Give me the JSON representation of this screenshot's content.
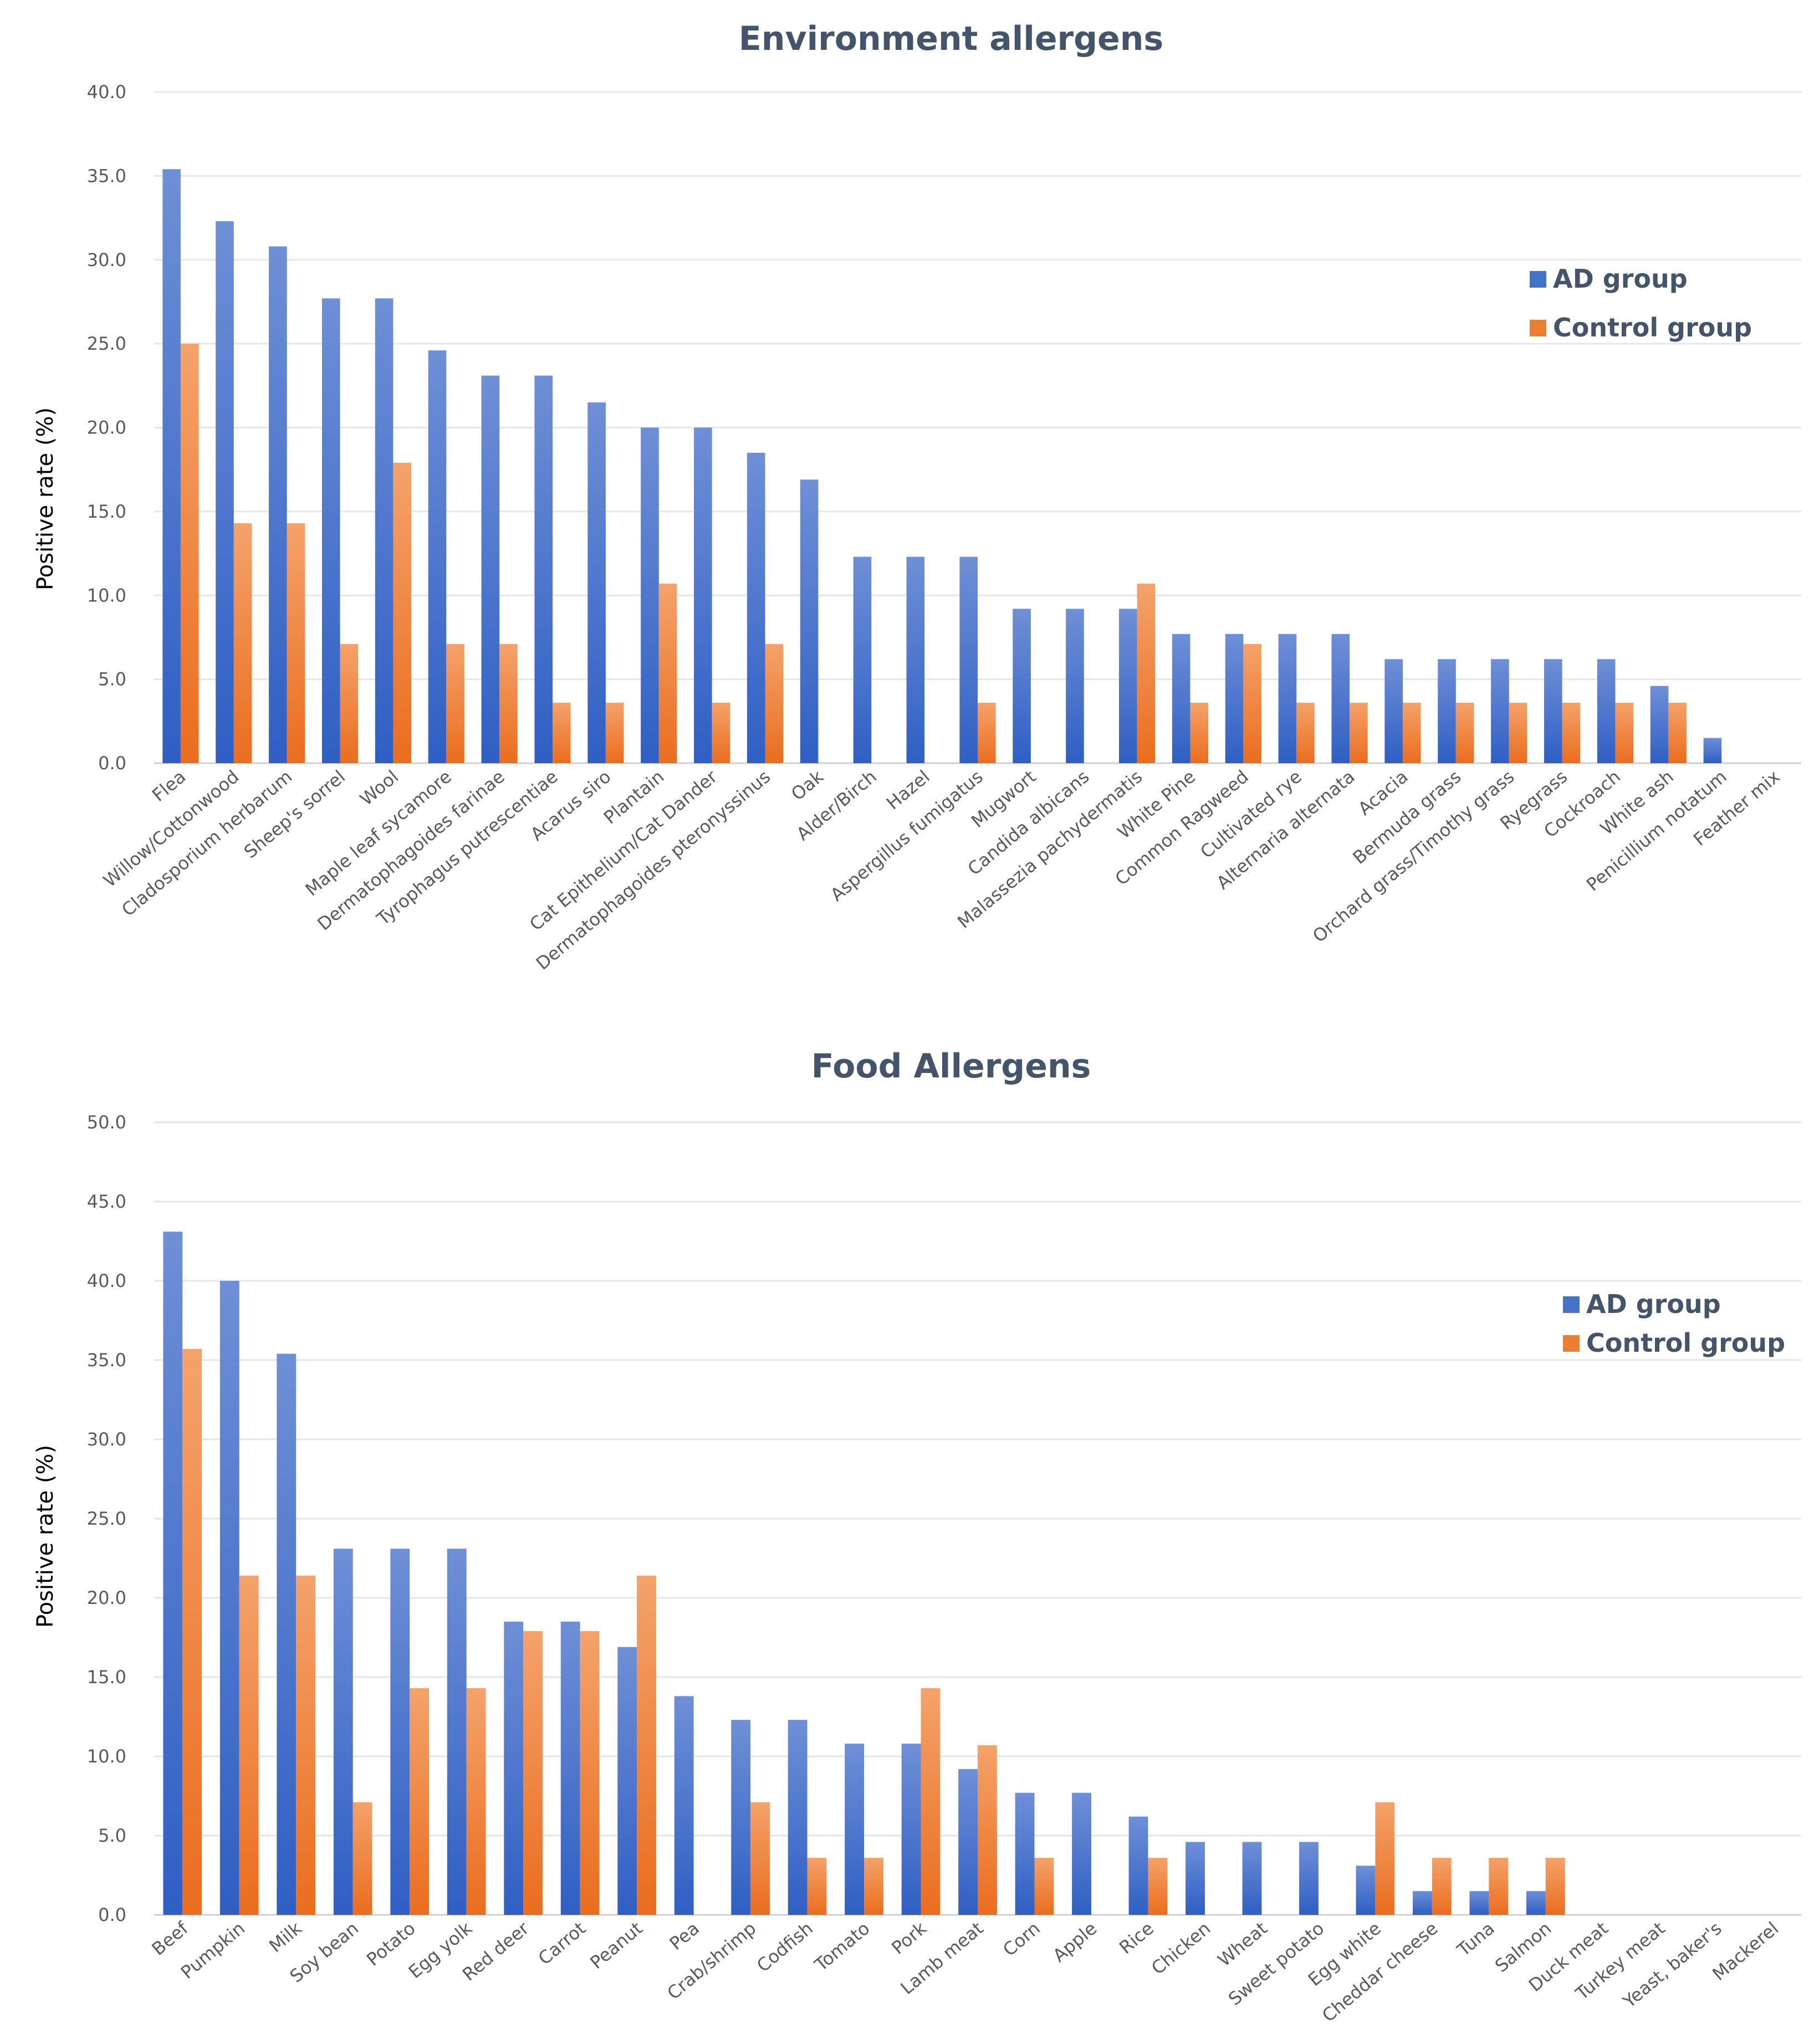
{
  "colors": {
    "ad": "#4472c4",
    "control": "#ed7d31",
    "title": "#44546a"
  },
  "chart_data": [
    {
      "type": "bar",
      "title": "Environment allergens",
      "xlabel": "",
      "ylabel": "Positive rate (%)",
      "ylim": [
        0,
        40
      ],
      "yticks": [
        "0.0",
        "5.0",
        "10.0",
        "15.0",
        "20.0",
        "25.0",
        "30.0",
        "35.0",
        "40.0"
      ],
      "legend": {
        "position": "right",
        "entries": [
          "AD group",
          "Control group"
        ]
      },
      "categories": [
        "Flea",
        "Willow/Cottonwood",
        "Cladosporium herbarum",
        "Sheep's sorrel",
        "Wool",
        "Maple leaf sycamore",
        "Dermatophagoides farinae",
        "Tyrophagus putrescentiae",
        "Acarus siro",
        "Plantain",
        "Cat Epithelium/Cat Dander",
        "Dermatophagoides pteronyssinus",
        "Oak",
        "Alder/Birch",
        "Hazel",
        "Aspergillus fumigatus",
        "Mugwort",
        "Candida albicans",
        "Malassezia pachydermatis",
        "White Pine",
        "Common Ragweed",
        "Cultivated rye",
        "Alternaria alternata",
        "Acacia",
        "Bermuda grass",
        "Orchard grass/Timothy grass",
        "Ryegrass",
        "Cockroach",
        "White ash",
        "Penicillium notatum",
        "Feather mix"
      ],
      "series": [
        {
          "name": "AD group",
          "values": [
            35.4,
            32.3,
            30.8,
            27.7,
            27.7,
            24.6,
            23.1,
            23.1,
            21.5,
            20.0,
            20.0,
            18.5,
            16.9,
            12.3,
            12.3,
            12.3,
            9.2,
            9.2,
            9.2,
            7.7,
            7.7,
            7.7,
            7.7,
            6.2,
            6.2,
            6.2,
            6.2,
            6.2,
            4.6,
            1.5,
            0
          ]
        },
        {
          "name": "Control group",
          "values": [
            25.0,
            14.3,
            14.3,
            7.1,
            17.9,
            7.1,
            7.1,
            3.6,
            3.6,
            10.7,
            3.6,
            7.1,
            0,
            0,
            0,
            3.6,
            0,
            0,
            10.7,
            3.6,
            7.1,
            3.6,
            3.6,
            3.6,
            3.6,
            3.6,
            3.6,
            3.6,
            3.6,
            0,
            0
          ]
        }
      ]
    },
    {
      "type": "bar",
      "title": "Food Allergens",
      "xlabel": "",
      "ylabel": "Positive rate (%)",
      "ylim": [
        0,
        50
      ],
      "yticks": [
        "0.0",
        "5.0",
        "10.0",
        "15.0",
        "20.0",
        "25.0",
        "30.0",
        "35.0",
        "40.0",
        "45.0",
        "50.0"
      ],
      "legend": {
        "position": "right",
        "entries": [
          "AD group",
          "Control group"
        ]
      },
      "categories": [
        "Beef",
        "Pumpkin",
        "Milk",
        "Soy bean",
        "Potato",
        "Egg yolk",
        "Red deer",
        "Carrot",
        "Peanut",
        "Pea",
        "Crab/shrimp",
        "Codfish",
        "Tomato",
        "Pork",
        "Lamb meat",
        "Corn",
        "Apple",
        "Rice",
        "Chicken",
        "Wheat",
        "Sweet potato",
        "Egg white",
        "Cheddar cheese",
        "Tuna",
        "Salmon",
        "Duck meat",
        "Turkey  meat",
        "Yeast, baker's",
        "Mackerel"
      ],
      "series": [
        {
          "name": "AD group",
          "values": [
            43.1,
            40.0,
            35.4,
            23.1,
            23.1,
            23.1,
            18.5,
            18.5,
            16.9,
            13.8,
            12.3,
            12.3,
            10.8,
            10.8,
            9.2,
            7.7,
            7.7,
            6.2,
            4.6,
            4.6,
            4.6,
            3.1,
            1.5,
            1.5,
            1.5,
            0,
            0,
            0,
            0
          ]
        },
        {
          "name": "Control group",
          "values": [
            35.7,
            21.4,
            21.4,
            7.1,
            14.3,
            14.3,
            17.9,
            17.9,
            21.4,
            0,
            7.1,
            3.6,
            3.6,
            14.3,
            10.7,
            3.6,
            0,
            3.6,
            0,
            0,
            0,
            7.1,
            3.6,
            3.6,
            3.6,
            0,
            0,
            0,
            0
          ]
        }
      ]
    }
  ]
}
